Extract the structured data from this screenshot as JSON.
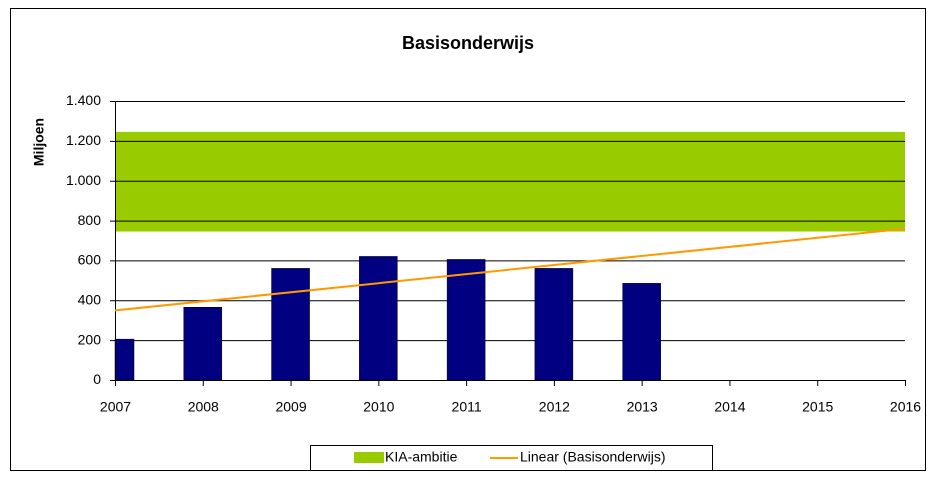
{
  "chart_data": {
    "type": "bar",
    "title": "Basisonderwijs",
    "y_label": "Miljoen",
    "x": [
      2007,
      2008,
      2009,
      2010,
      2011,
      2012,
      2013
    ],
    "series": [
      {
        "name": "Basisonderwijs",
        "color": "#000080",
        "values": [
          205,
          365,
          560,
          620,
          605,
          560,
          485
        ]
      }
    ],
    "band": {
      "name": "KIA-ambitie",
      "color": "#99cc00",
      "range": [
        745,
        1245
      ]
    },
    "trendline": {
      "name": "Linear (Basisonderwijs)",
      "color": "#ff9900",
      "kind": "linear"
    },
    "xlim": [
      2007,
      2016
    ],
    "xticks": [
      2007,
      2008,
      2009,
      2010,
      2011,
      2012,
      2013,
      2014,
      2015,
      2016
    ],
    "ylim": [
      0,
      1400
    ],
    "yticks": [
      0,
      200,
      400,
      600,
      800,
      {
        "value": 1000,
        "label": "1.000"
      },
      {
        "value": 1200,
        "label": "1.200"
      },
      {
        "value": 1400,
        "label": "1.400"
      }
    ],
    "grid": true,
    "legend": "bottom"
  }
}
